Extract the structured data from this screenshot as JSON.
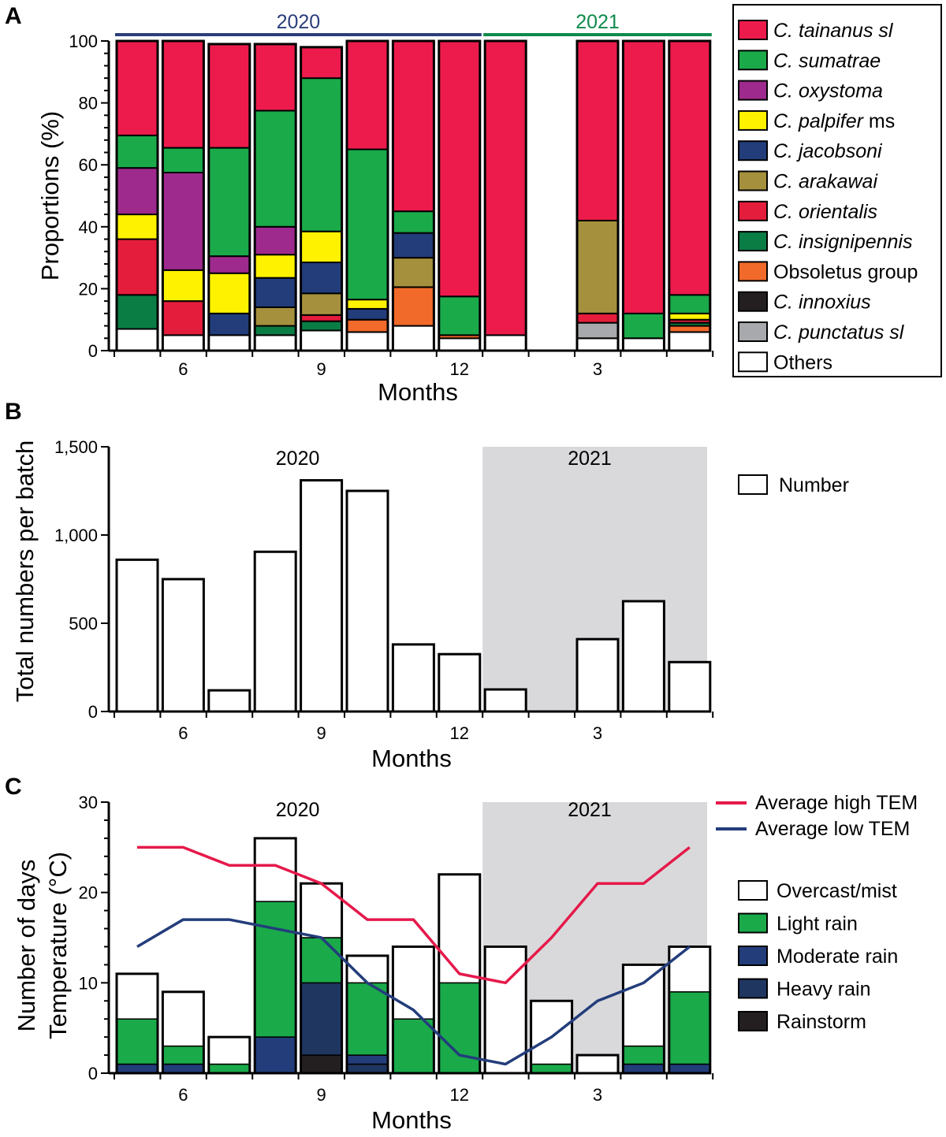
{
  "chart_data": [
    {
      "panel": "A",
      "type": "bar",
      "stacked": true,
      "ylabel": "Proportions (%)",
      "xlabel": "Months",
      "ylim": [
        0,
        100
      ],
      "yticks": [
        0,
        20,
        40,
        60,
        80,
        100
      ],
      "xtick_labels": [
        {
          "label": "6",
          "slot": 1
        },
        {
          "label": "9",
          "slot": 4
        },
        {
          "label": "12",
          "slot": 7
        },
        {
          "label": "3",
          "slot": 10
        }
      ],
      "year_labels": [
        {
          "label": "2020",
          "from_slot": 0,
          "to_slot": 7,
          "color": "#2a3e7a"
        },
        {
          "label": "2021",
          "from_slot": 8,
          "to_slot": 12,
          "color": "#0f8a4b"
        }
      ],
      "slots": [
        "May 2020",
        "Jun 2020",
        "Jul 2020",
        "Aug 2020",
        "Sep 2020",
        "Oct 2020",
        "Nov 2020",
        "Dec 2020",
        "Jan 2021",
        "Feb 2021",
        "Mar 2021",
        "Apr 2021",
        "May 2021"
      ],
      "series": [
        {
          "name": "Others",
          "color": "#ffffff",
          "values": [
            7,
            5,
            5,
            5,
            6.5,
            6,
            8,
            4,
            5,
            0,
            4,
            4,
            6
          ]
        },
        {
          "name": "C. punctatus sl",
          "color": "#a7a9ac",
          "values": [
            0,
            0,
            0,
            0,
            0,
            0,
            0,
            0,
            0,
            0,
            5,
            0,
            0
          ]
        },
        {
          "name": "C. innoxius",
          "color": "#231f20",
          "values": [
            0,
            0,
            0,
            0,
            0,
            0,
            0,
            0,
            0,
            0,
            0,
            0,
            0
          ]
        },
        {
          "name": "Obsoletus group",
          "color": "#f26a2a",
          "values": [
            0,
            0,
            0,
            0,
            0,
            4,
            12.5,
            1,
            0,
            0,
            0,
            0,
            2
          ]
        },
        {
          "name": "C. insignipennis",
          "color": "#0a7d45",
          "values": [
            11,
            0,
            0,
            3,
            3,
            0,
            0,
            0,
            0,
            0,
            0,
            0,
            1
          ]
        },
        {
          "name": "C. orientalis",
          "color": "#e51d3c",
          "values": [
            18,
            11,
            0,
            0,
            2,
            0,
            0,
            0,
            0,
            0,
            3,
            0,
            1
          ]
        },
        {
          "name": "C. arakawai",
          "color": "#a5913d",
          "values": [
            0,
            0,
            0,
            6,
            7,
            0,
            9.5,
            0,
            0,
            0,
            30,
            0,
            0
          ]
        },
        {
          "name": "C. jacobsoni",
          "color": "#233d7b",
          "values": [
            0,
            0,
            7,
            9.5,
            10,
            3.5,
            8,
            0,
            0,
            0,
            0,
            0,
            0
          ]
        },
        {
          "name": "C. palpifer ms",
          "color": "#fff200",
          "values": [
            8,
            10,
            13,
            7.5,
            10,
            3,
            0,
            0,
            0,
            0,
            0,
            0,
            2
          ]
        },
        {
          "name": "C. oxystoma",
          "color": "#9e2a8e",
          "values": [
            15,
            31.5,
            5.5,
            9,
            0,
            0,
            0,
            0,
            0,
            0,
            0,
            0,
            0
          ]
        },
        {
          "name": "C. sumatrae",
          "color": "#1aaa4a",
          "values": [
            10.5,
            8,
            35,
            37.5,
            49.5,
            48.5,
            7,
            12.5,
            0,
            0,
            0,
            8,
            6
          ]
        },
        {
          "name": "C. tainanus sl",
          "color": "#ed1b4c",
          "values": [
            30.5,
            34.5,
            33.5,
            21.5,
            10,
            35,
            55,
            82.5,
            95,
            0,
            58,
            88,
            82
          ]
        }
      ],
      "legend": [
        "C. tainanus sl",
        "C. sumatrae",
        "C. oxystoma",
        "C. palpifer ms",
        "C. jacobsoni",
        "C. arakawai",
        "C. orientalis",
        "C. insignipennis",
        "Obsoletus group",
        "C. innoxius",
        "C. punctatus sl",
        "Others"
      ]
    },
    {
      "panel": "B",
      "type": "bar",
      "ylabel": "Total numbers per batch",
      "xlabel": "Months",
      "ylim": [
        0,
        1500
      ],
      "yticks": [
        {
          "value": 0,
          "label": "0"
        },
        {
          "value": 500,
          "label": "500"
        },
        {
          "value": 1000,
          "label": "1,000"
        },
        {
          "value": 1500,
          "label": "1,500"
        }
      ],
      "xtick_labels": [
        {
          "label": "6",
          "slot": 1
        },
        {
          "label": "9",
          "slot": 4
        },
        {
          "label": "12",
          "slot": 7
        },
        {
          "label": "3",
          "slot": 10
        }
      ],
      "year_labels": [
        {
          "label": "2020",
          "slot_center": 4
        },
        {
          "label": "2021",
          "slot_center": 10
        }
      ],
      "shaded_from_slot": 8,
      "series": [
        {
          "name": "Number",
          "color": "#ffffff",
          "values": [
            860,
            750,
            120,
            905,
            1310,
            1250,
            380,
            325,
            125,
            0,
            410,
            625,
            280
          ]
        }
      ],
      "legend": [
        "Number"
      ]
    },
    {
      "panel": "C",
      "type": "bar",
      "stacked": true,
      "ylabel": "Number of days",
      "ylabel2": "Temperature (°C)",
      "xlabel": "Months",
      "ylim": [
        0,
        30
      ],
      "yticks": [
        0,
        10,
        20,
        30
      ],
      "xtick_labels": [
        {
          "label": "6",
          "slot": 1
        },
        {
          "label": "9",
          "slot": 4
        },
        {
          "label": "12",
          "slot": 7
        },
        {
          "label": "3",
          "slot": 10
        }
      ],
      "year_labels": [
        {
          "label": "2020",
          "slot_center": 4
        },
        {
          "label": "2021",
          "slot_center": 10
        }
      ],
      "shaded_from_slot": 8,
      "series": [
        {
          "name": "Rainstorm",
          "color": "#231f20",
          "values": [
            0,
            0,
            0,
            0,
            2,
            0,
            0,
            0,
            0,
            0,
            0,
            0,
            0
          ]
        },
        {
          "name": "Heavy rain",
          "color": "#1f3661",
          "values": [
            0,
            0,
            0,
            0,
            8,
            1,
            0,
            0,
            0,
            0,
            0,
            0,
            0
          ]
        },
        {
          "name": "Moderate rain",
          "color": "#233d7b",
          "values": [
            1,
            1,
            0,
            4,
            0,
            1,
            0,
            0,
            0,
            0,
            0,
            1,
            1
          ]
        },
        {
          "name": "Light rain",
          "color": "#1aaa4a",
          "values": [
            5,
            2,
            1,
            15,
            5,
            8,
            6,
            10,
            0,
            1,
            0,
            2,
            8
          ]
        },
        {
          "name": "Overcast/mist",
          "color": "#ffffff",
          "values": [
            5,
            6,
            3,
            7,
            6,
            3,
            8,
            12,
            14,
            7,
            2,
            9,
            5
          ]
        }
      ],
      "lines": [
        {
          "name": "Average high TEM",
          "color": "#e5194a",
          "values": [
            25,
            25,
            23,
            23,
            21,
            17,
            17,
            11,
            10,
            15,
            21,
            21,
            25
          ]
        },
        {
          "name": "Average low TEM",
          "color": "#233d7b",
          "values": [
            14,
            17,
            17,
            16,
            15,
            10,
            7,
            2,
            1,
            4,
            8,
            10,
            14
          ]
        }
      ],
      "legend_lines": [
        "Average high TEM",
        "Average low TEM"
      ],
      "legend_bars": [
        "Overcast/mist",
        "Light rain",
        "Moderate rain",
        "Heavy rain",
        "Rainstorm"
      ]
    }
  ]
}
